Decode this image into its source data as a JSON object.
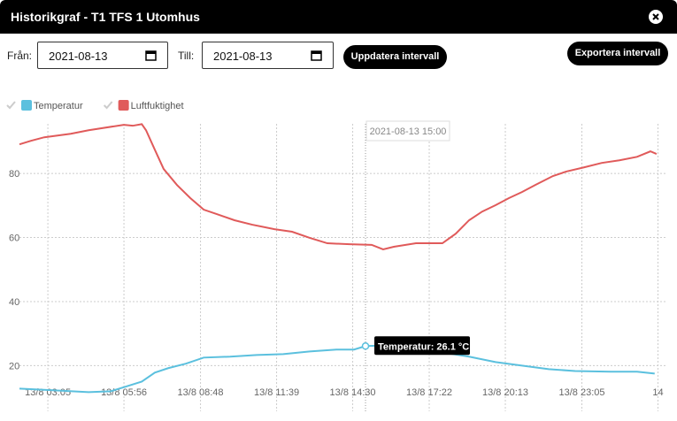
{
  "header": {
    "title": "Historikgraf - T1 TFS 1 Utomhus"
  },
  "form": {
    "from_label": "Från:",
    "from_value": "2021-08-13",
    "to_label": "Till:",
    "to_value": "2021-08-13",
    "update_button": "Uppdatera intervall",
    "export_button": "Exportera intervall"
  },
  "chart": {
    "type": "line",
    "xlim": [
      2.02,
      25.95
    ],
    "ylim": [
      8.5,
      95.5
    ],
    "yticks": [
      20,
      40,
      60,
      80
    ],
    "xticks": [
      {
        "value": 3.0833,
        "label": "13/8 03:05"
      },
      {
        "value": 5.9333,
        "label": "13/8 05:56"
      },
      {
        "value": 8.8,
        "label": "13/8 08:48"
      },
      {
        "value": 11.65,
        "label": "13/8 11:39"
      },
      {
        "value": 14.5,
        "label": "13/8 14:30"
      },
      {
        "value": 17.3667,
        "label": "13/8 17:22"
      },
      {
        "value": 20.2167,
        "label": "13/8 20:13"
      },
      {
        "value": 23.0833,
        "label": "13/8 23:05"
      },
      {
        "value": 25.9333,
        "label": "14"
      }
    ],
    "grid": true,
    "series": [
      {
        "name": "Temperatur",
        "color": "#5bc0de",
        "x": [
          2.02,
          3.28,
          4.61,
          5.44,
          6.1,
          6.6,
          7.09,
          7.59,
          8.25,
          8.92,
          9.91,
          10.9,
          11.9,
          12.89,
          13.89,
          14.55,
          14.98,
          15.87,
          16.87,
          17.86,
          18.86,
          19.85,
          20.84,
          21.84,
          22.83,
          24.16,
          25.15,
          25.81
        ],
        "values": [
          12.8,
          12.3,
          11.7,
          12,
          13.7,
          15,
          17.8,
          19.2,
          20.6,
          22.5,
          22.8,
          23.3,
          23.6,
          24.4,
          25,
          25,
          26.1,
          26.3,
          25.2,
          24.1,
          22.8,
          21.1,
          20,
          18.9,
          18.3,
          18.1,
          18.1,
          17.5
        ]
      },
      {
        "name": "Luftfuktighet",
        "color": "#e05a5a",
        "x": [
          2.02,
          2.45,
          2.95,
          3.94,
          4.61,
          5.93,
          6.26,
          6.6,
          6.76,
          7.09,
          7.42,
          7.92,
          8.42,
          8.92,
          9.41,
          10.07,
          10.74,
          11.57,
          12.23,
          12.89,
          13.55,
          14.38,
          15.21,
          15.64,
          16.04,
          16.87,
          17.86,
          18.36,
          18.86,
          19.35,
          19.85,
          20.35,
          20.84,
          21.34,
          22.0,
          22.5,
          23.16,
          23.83,
          24.49,
          25.15,
          25.65,
          25.88
        ],
        "values": [
          89.1,
          90.2,
          91.3,
          92.4,
          93.5,
          95.2,
          94.9,
          95.4,
          93.5,
          87.4,
          81.4,
          76.4,
          72.3,
          68.7,
          67.3,
          65.4,
          64,
          62.6,
          61.8,
          59.9,
          58.2,
          57.9,
          57.7,
          56.3,
          57.1,
          58.2,
          58.2,
          61.2,
          65.4,
          68.1,
          70.1,
          72.3,
          74.2,
          76.4,
          79.2,
          80.6,
          81.9,
          83.3,
          84.1,
          85.2,
          86.9,
          86.1
        ]
      }
    ],
    "crosshair_label": "2021-08-13 15:00",
    "tooltip": "Temperatur: 26.1 °C"
  }
}
